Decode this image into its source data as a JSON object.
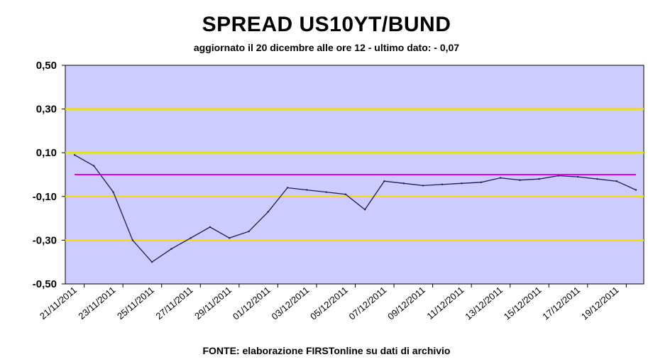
{
  "chart_data": {
    "type": "line",
    "title": "SPREAD US10YT/BUND",
    "subtitle": "aggiornato il 20 dicembre alle ore 12 - ultimo dato: - 0,07",
    "source": "FONTE: elaborazione FIRSTonline su dati di archivio",
    "xlabel": "",
    "ylabel": "",
    "ylim": [
      -0.5,
      0.5
    ],
    "y_ticks": [
      0.5,
      0.3,
      0.1,
      -0.1,
      -0.3,
      -0.5
    ],
    "y_tick_labels": [
      "0,50",
      "0,30",
      "0,10",
      "-0,10",
      "-0,30",
      "-0,50"
    ],
    "x_tick_labels": [
      "21/11/2011",
      "23/11/2011",
      "25/11/2011",
      "27/11/2011",
      "29/11/2011",
      "01/12/2011",
      "03/12/2011",
      "05/12/2011",
      "07/12/2011",
      "09/12/2011",
      "11/12/2011",
      "13/12/2011",
      "15/12/2011",
      "17/12/2011",
      "19/12/2011"
    ],
    "x": [
      "21/11/2011",
      "22/11/2011",
      "23/11/2011",
      "24/11/2011",
      "25/11/2011",
      "26/11/2011",
      "27/11/2011",
      "28/11/2011",
      "29/11/2011",
      "30/11/2011",
      "01/12/2011",
      "02/12/2011",
      "03/12/2011",
      "04/12/2011",
      "05/12/2011",
      "06/12/2011",
      "07/12/2011",
      "08/12/2011",
      "09/12/2011",
      "10/12/2011",
      "11/12/2011",
      "12/12/2011",
      "13/12/2011",
      "14/12/2011",
      "15/12/2011",
      "16/12/2011",
      "17/12/2011",
      "18/12/2011",
      "19/12/2011",
      "20/12/2011"
    ],
    "series": [
      {
        "values": [
          0.09,
          0.04,
          -0.08,
          -0.3,
          -0.4,
          -0.34,
          -0.29,
          -0.24,
          -0.29,
          -0.26,
          -0.17,
          -0.06,
          -0.07,
          -0.08,
          -0.09,
          -0.16,
          -0.03,
          -0.04,
          -0.05,
          -0.045,
          -0.04,
          -0.035,
          -0.015,
          -0.025,
          -0.02,
          -0.005,
          -0.01,
          -0.02,
          -0.03,
          -0.07
        ],
        "color": "#1a1a5e"
      }
    ],
    "reference_line": {
      "value": 0.0,
      "color": "#e000e0"
    },
    "grid": true,
    "grid_color": "#f0e000",
    "plot_background": "#ccccff",
    "legend": "none"
  }
}
